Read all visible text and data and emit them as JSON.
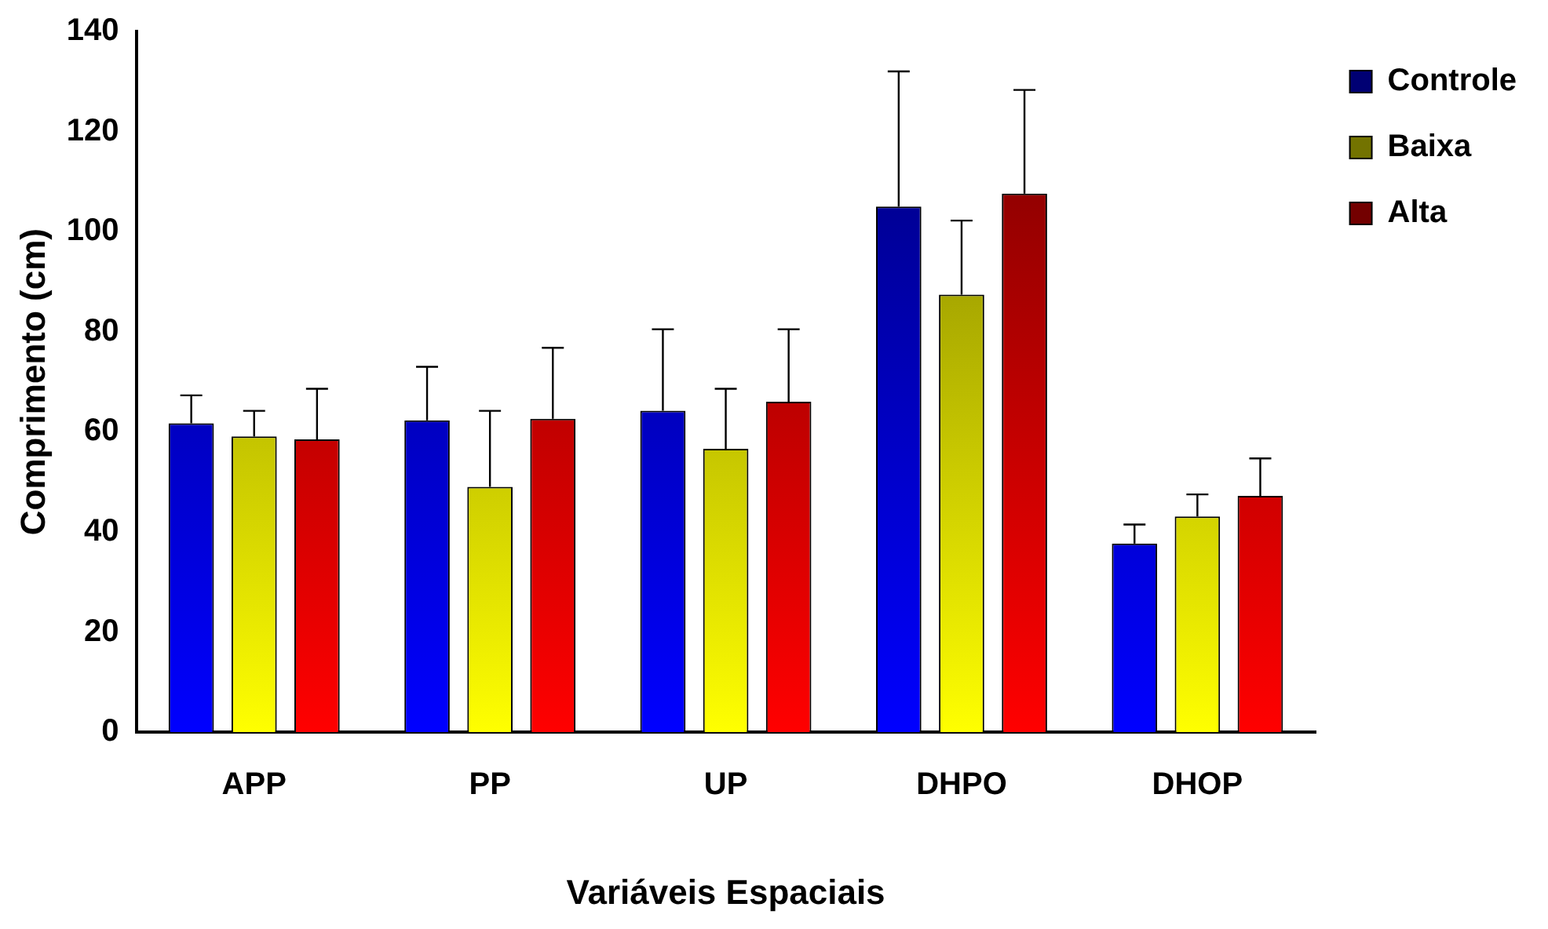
{
  "chart_data": {
    "type": "bar",
    "xlabel": "Variáveis Espaciais",
    "ylabel": "Comprimento (cm)",
    "categories": [
      "APP",
      "PP",
      "UP",
      "DHPO",
      "DHOP"
    ],
    "series": [
      {
        "name": "Controle",
        "color": "#0000ff",
        "values": [
          61.7,
          62.3,
          64.2,
          105,
          37.7
        ],
        "errors": [
          [
            61.7,
            67.3
          ],
          [
            62.3,
            73
          ],
          [
            64.2,
            80.5
          ],
          [
            105,
            132
          ],
          [
            37.7,
            41.5
          ]
        ]
      },
      {
        "name": "Baixa",
        "color": "#ffff00",
        "values": [
          59.1,
          49,
          56.6,
          87.4,
          43.1
        ],
        "errors": [
          [
            59.1,
            64.2
          ],
          [
            49,
            64.2
          ],
          [
            56.6,
            68.6
          ],
          [
            87.4,
            102.2
          ],
          [
            43.1,
            47.5
          ]
        ]
      },
      {
        "name": "Alta",
        "color": "#ff0000",
        "values": [
          58.5,
          62.6,
          66,
          107.6,
          47.2
        ],
        "errors": [
          [
            58.5,
            68.6
          ],
          [
            62.6,
            76.8
          ],
          [
            66,
            80.5
          ],
          [
            107.6,
            128.3
          ],
          [
            47.2,
            54.7
          ]
        ]
      }
    ],
    "ylim": [
      0,
      140
    ],
    "yticks": [
      0,
      20,
      40,
      60,
      80,
      100,
      120,
      140
    ],
    "grid": false,
    "legend": "top right"
  }
}
